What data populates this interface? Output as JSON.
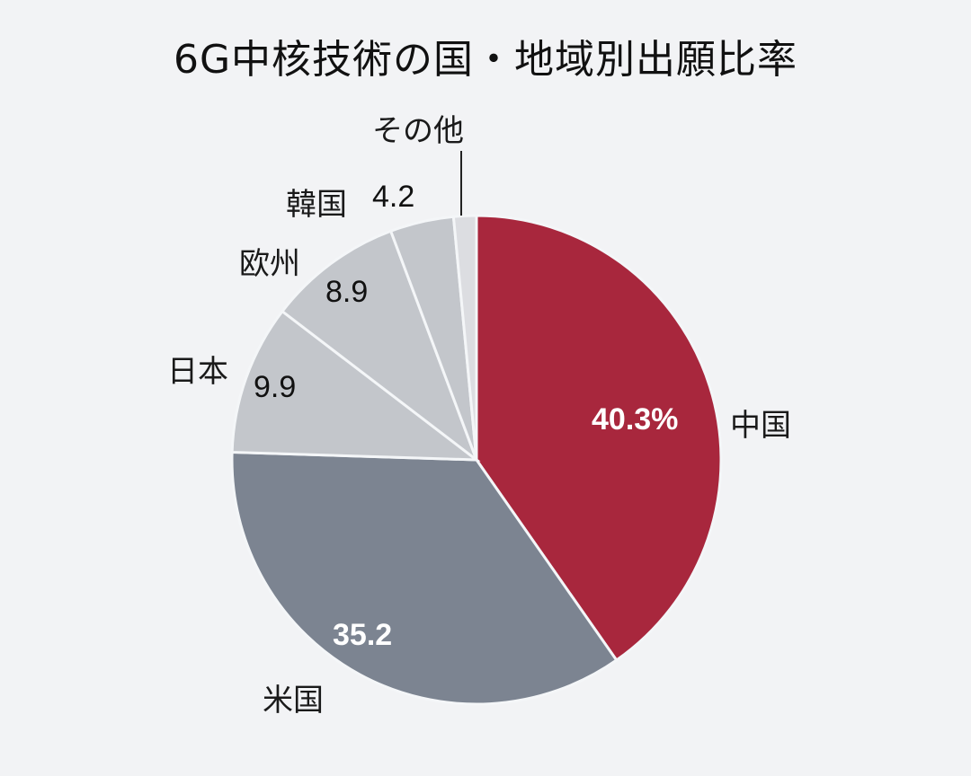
{
  "title": "6G中核技術の国・地域別出願比率",
  "chart_data": {
    "type": "pie",
    "title": "6G中核技術の国・地域別出願比率",
    "unit": "%",
    "start_angle": "12 o'clock, clockwise",
    "categories": [
      "中国",
      "米国",
      "日本",
      "欧州",
      "韓国",
      "その他"
    ],
    "values": [
      40.3,
      35.2,
      9.9,
      8.9,
      4.2,
      1.5
    ],
    "value_labels": [
      "40.3%",
      "35.2",
      "9.9",
      "8.9",
      "4.2",
      ""
    ],
    "colors": [
      "#a8273d",
      "#7c8491",
      "#c3c6cb",
      "#c3c6cb",
      "#c3c6cb",
      "#dcdde1"
    ],
    "legend": "none (direct labels)"
  },
  "labels": {
    "china": "中国",
    "china_value": "40.3%",
    "us": "米国",
    "us_value": "35.2",
    "japan": "日本",
    "japan_value": "9.9",
    "europe": "欧州",
    "europe_value": "8.9",
    "korea": "韓国",
    "korea_value": "4.2",
    "other": "その他"
  }
}
